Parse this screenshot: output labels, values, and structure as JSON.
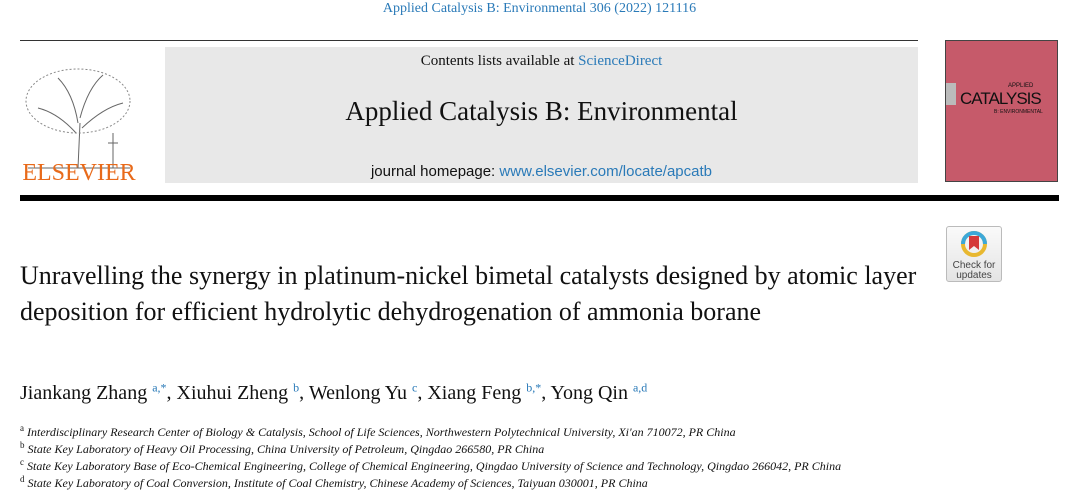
{
  "journal_ref": "Applied Catalysis B: Environmental 306 (2022) 121116",
  "header": {
    "contents_prefix": "Contents lists available at ",
    "contents_link": "ScienceDirect",
    "journal_name": "Applied Catalysis B: Environmental",
    "homepage_prefix": "journal homepage: ",
    "homepage_link": "www.elsevier.com/locate/apcatb",
    "publisher": "ELSEVIER",
    "cover_title_top": "APPLIED",
    "cover_title": "CATALYSIS",
    "cover_subtitle": "B: ENVIRONMENTAL",
    "cover_color": "#c65a6a"
  },
  "check_updates": {
    "line1": "Check for",
    "line2": "updates"
  },
  "title": "Unravelling the synergy in platinum-nickel bimetal catalysts designed by atomic layer deposition for efficient hydrolytic dehydrogenation of ammonia borane",
  "authors": [
    {
      "name": "Jiankang Zhang",
      "sup": "a,*",
      "sep": ", "
    },
    {
      "name": "Xiuhui Zheng",
      "sup": "b",
      "sep": ", "
    },
    {
      "name": "Wenlong Yu",
      "sup": "c",
      "sep": ", "
    },
    {
      "name": "Xiang Feng",
      "sup": "b,*",
      "sep": ", "
    },
    {
      "name": "Yong Qin",
      "sup": "a,d",
      "sep": ""
    }
  ],
  "affiliations": [
    {
      "label": "a",
      "text": "Interdisciplinary Research Center of Biology & Catalysis, School of Life Sciences, Northwestern Polytechnical University, Xi'an 710072, PR China"
    },
    {
      "label": "b",
      "text": "State Key Laboratory of Heavy Oil Processing, China University of Petroleum, Qingdao 266580, PR China"
    },
    {
      "label": "c",
      "text": "State Key Laboratory Base of Eco-Chemical Engineering, College of Chemical Engineering, Qingdao University of Science and Technology, Qingdao 266042, PR China"
    },
    {
      "label": "d",
      "text": "State Key Laboratory of Coal Conversion, Institute of Coal Chemistry, Chinese Academy of Sciences, Taiyuan 030001, PR China"
    }
  ]
}
